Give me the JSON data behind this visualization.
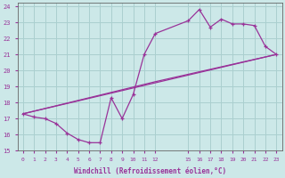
{
  "xlabel": "Windchill (Refroidissement éolien,°C)",
  "bg_color": "#cce8e8",
  "grid_color": "#aacfcf",
  "line_color": "#993399",
  "xlim": [
    -0.5,
    23.5
  ],
  "ylim": [
    15,
    24.2
  ],
  "xtick_positions": [
    0,
    1,
    2,
    3,
    4,
    5,
    6,
    7,
    8,
    9,
    10,
    11,
    12,
    15,
    16,
    17,
    18,
    19,
    20,
    21,
    22,
    23
  ],
  "xtick_labels": [
    "0",
    "1",
    "2",
    "3",
    "4",
    "5",
    "6",
    "7",
    "8",
    "9",
    "10",
    "11",
    "12",
    "15",
    "16",
    "17",
    "18",
    "19",
    "20",
    "21",
    "22",
    "23"
  ],
  "ytick_positions": [
    15,
    16,
    17,
    18,
    19,
    20,
    21,
    22,
    23,
    24
  ],
  "ytick_labels": [
    "15",
    "16",
    "17",
    "18",
    "19",
    "20",
    "21",
    "22",
    "23",
    "24"
  ],
  "line1_x": [
    0,
    1,
    2,
    3,
    4,
    5,
    6,
    7,
    8,
    9,
    10,
    11,
    12,
    15,
    16,
    17,
    18,
    19,
    20,
    21,
    22,
    23
  ],
  "line1_y": [
    17.3,
    17.1,
    17.0,
    16.7,
    16.1,
    15.7,
    15.5,
    15.5,
    18.3,
    17.0,
    18.5,
    21.0,
    22.3,
    23.1,
    23.8,
    22.7,
    23.2,
    22.9,
    22.9,
    22.8,
    21.5,
    21.0
  ],
  "line2_x": [
    0,
    23
  ],
  "line2_y": [
    17.3,
    21.0
  ],
  "line3_x": [
    0,
    12,
    23
  ],
  "line3_y": [
    17.3,
    19.3,
    21.0
  ]
}
